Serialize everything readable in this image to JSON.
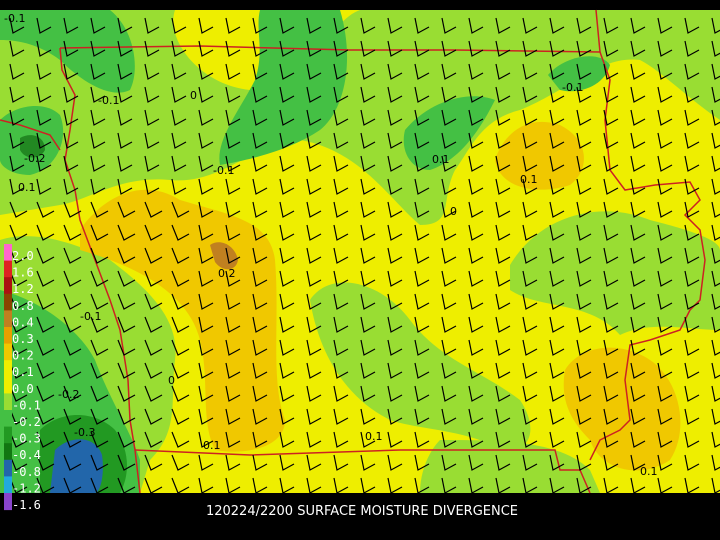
{
  "title": "120224/2200 SURFACE MOISTURE DIVERGENCE",
  "colorbar": {
    "labels": [
      "2.0",
      "1.6",
      "1.2",
      "0.8",
      "0.4",
      "0.3",
      "0.2",
      "0.1",
      "0.0",
      "-0.1",
      "-0.2",
      "-0.3",
      "-0.4",
      "-0.8",
      "-1.2",
      "-1.6"
    ],
    "colors": [
      "#ff66cc",
      "#dd2222",
      "#aa1111",
      "#884400",
      "#c08020",
      "#e8a000",
      "#f0c800",
      "#eeee00",
      "#eeee00",
      "#99dd33",
      "#44c044",
      "#229922",
      "#117711",
      "#2266aa",
      "#22aadd",
      "#8844cc"
    ]
  },
  "contour_labels": [
    "-0.1",
    "-0.1",
    "0",
    "-0.1",
    "-0.2",
    "0.1",
    "0.1",
    "-0.1",
    "0.1",
    "0",
    "0.2",
    "-0.1",
    "0",
    "-0.2",
    "-0.3",
    "0.1",
    "0.1",
    "0.1"
  ]
}
